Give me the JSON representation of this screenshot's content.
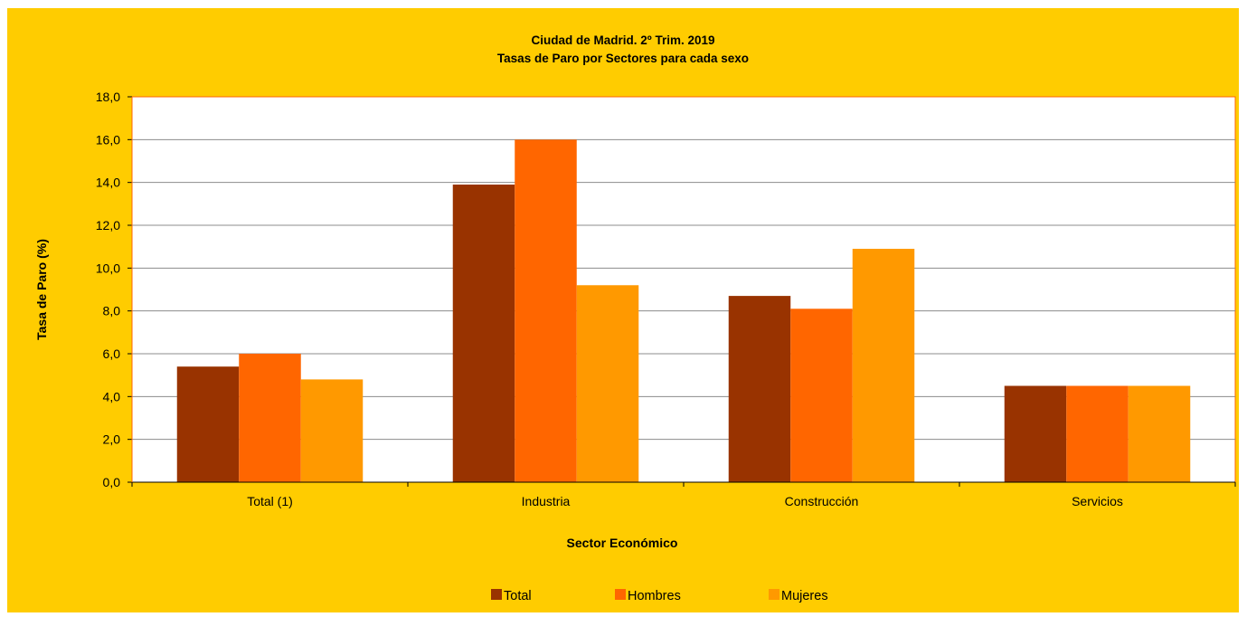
{
  "chart_data": {
    "type": "bar",
    "title": "Ciudad de Madrid. 2º Trim. 2019",
    "subtitle": "Tasas de Paro por Sectores para cada sexo",
    "xlabel": "Sector Económico",
    "ylabel": "Tasa de Paro (%)",
    "categories": [
      "Total (1)",
      "Industria",
      "Construcción",
      "Servicios"
    ],
    "series": [
      {
        "name": "Total",
        "color": "#993300",
        "values": [
          5.4,
          13.9,
          8.7,
          4.5
        ]
      },
      {
        "name": "Hombres",
        "color": "#ff6600",
        "values": [
          6.0,
          16.0,
          8.1,
          4.5
        ]
      },
      {
        "name": "Mujeres",
        "color": "#ff9900",
        "values": [
          4.8,
          9.2,
          10.9,
          4.5
        ]
      }
    ],
    "ylim": [
      0,
      18
    ],
    "yticks": [
      "0,0",
      "2,0",
      "4,0",
      "6,0",
      "8,0",
      "10,0",
      "12,0",
      "14,0",
      "16,0",
      "18,0"
    ],
    "grid": true,
    "legend_position": "bottom",
    "plot_background": "#ffffff",
    "frame_background": "#ffcc00"
  }
}
